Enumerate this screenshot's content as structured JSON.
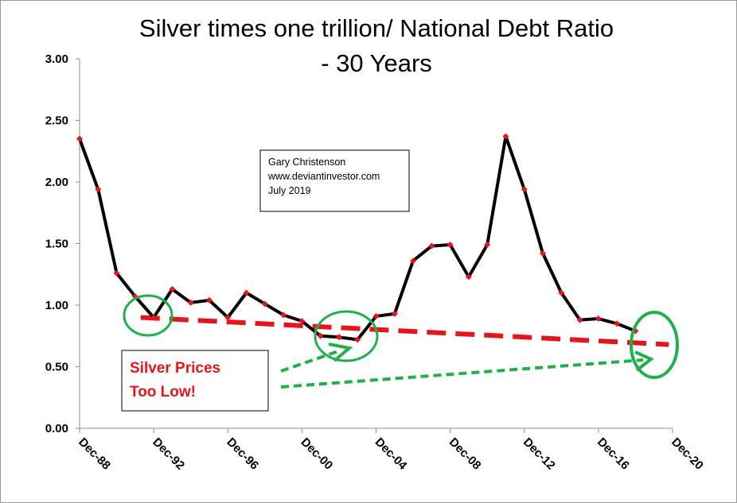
{
  "chart_data": {
    "type": "line",
    "title": "Silver times one trillion/ National Debt Ratio",
    "subtitle": "- 30 Years",
    "xlabel": "",
    "ylabel": "",
    "xlim": [
      1988.9,
      2020.9
    ],
    "ylim": [
      0,
      3
    ],
    "y_ticks": [
      "0.00",
      "0.50",
      "1.00",
      "1.50",
      "2.00",
      "2.50",
      "3.00"
    ],
    "x_ticks": [
      "Dec-88",
      "Dec-92",
      "Dec-96",
      "Dec-00",
      "Dec-04",
      "Dec-08",
      "Dec-12",
      "Dec-16",
      "Dec-20"
    ],
    "series": [
      {
        "color": "#000000",
        "marker_color": "#e8141b",
        "x": [
          1988.9,
          1989.9,
          1990.9,
          1991.9,
          1992.9,
          1993.9,
          1994.9,
          1995.9,
          1996.9,
          1997.9,
          1998.9,
          1999.9,
          2000.9,
          2001.9,
          2002.9,
          2003.9,
          2004.9,
          2005.9,
          2006.9,
          2007.9,
          2008.9,
          2009.9,
          2010.9,
          2011.9,
          2012.9,
          2013.9,
          2014.9,
          2015.9,
          2016.9,
          2017.9,
          2018.9
        ],
        "values": [
          2.35,
          1.94,
          1.26,
          1.07,
          0.9,
          1.13,
          1.02,
          1.04,
          0.9,
          1.1,
          1.01,
          0.92,
          0.87,
          0.75,
          0.74,
          0.72,
          0.91,
          0.93,
          1.36,
          1.48,
          1.49,
          1.23,
          1.49,
          2.37,
          1.94,
          1.42,
          1.1,
          0.88,
          0.89,
          0.85,
          0.79
        ]
      }
    ],
    "trend_line": {
      "color": "#e8141b",
      "style": "dashed",
      "x": [
        1992.2,
        2020.7
      ],
      "values": [
        0.9,
        0.68
      ]
    },
    "annotation_box": {
      "lines": [
        "Gary Christenson",
        "www.deviantinvestor.com",
        "July 2019"
      ]
    },
    "callout_box": {
      "lines": [
        "Silver Prices",
        "Too Low!"
      ],
      "color": "#e8141b"
    },
    "highlight_color": "#1fb04a",
    "grid": false,
    "legend": "none"
  }
}
